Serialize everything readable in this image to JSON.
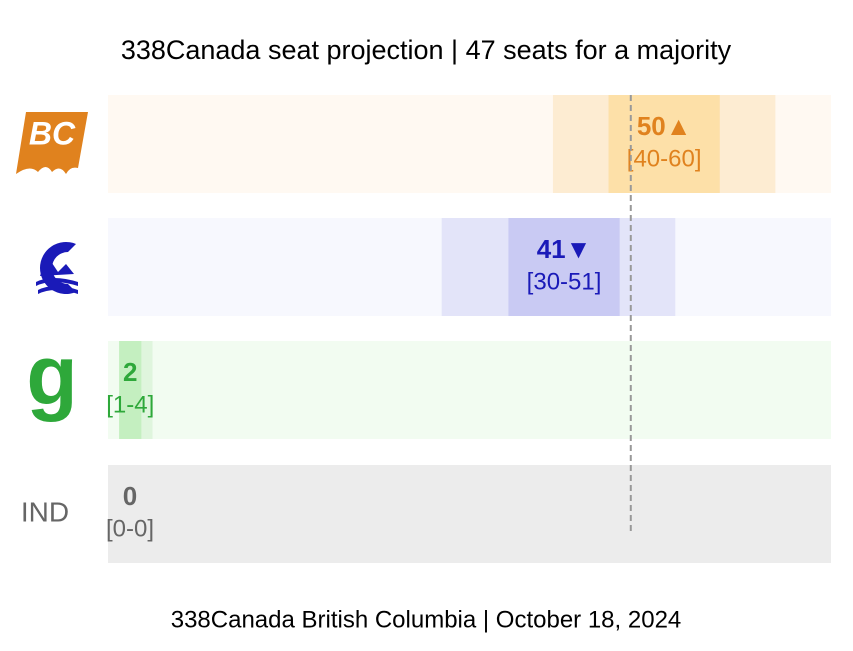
{
  "chart_data": {
    "type": "range",
    "title": "338Canada seat projection | 47 seats for a majority",
    "footer": "338Canada British Columbia | October 18, 2024",
    "categories": [
      "BC",
      null,
      "g",
      "IND"
    ],
    "values": [
      50,
      41,
      2,
      0
    ],
    "value_labels": [
      "50▲",
      "41▼",
      "2",
      "0"
    ],
    "low": [
      40,
      30,
      1,
      0
    ],
    "high": [
      60,
      51,
      4,
      0
    ],
    "range_labels": [
      "[40-60]",
      "[30-51]",
      "[1-4]",
      "[0-0]"
    ],
    "inner_low": [
      45,
      36,
      1,
      0
    ],
    "inner_high": [
      55,
      46,
      3,
      0
    ],
    "majority": 47,
    "xlim": [
      0,
      65
    ],
    "colors": [
      "#e0821e",
      "#1a1ab8",
      "#2ea83a",
      "#666666"
    ],
    "backgrounds": [
      "#fff9f2",
      "#f7f8fe",
      "#f2fcf1",
      "#ececec"
    ],
    "outer_colors": [
      "#fdecd2",
      "#e3e4f9",
      "#dff5dd",
      "#ececec"
    ],
    "inner_colors": [
      "#fde0a8",
      "#c9caf3",
      "#c4efc0",
      "#ececec"
    ]
  }
}
